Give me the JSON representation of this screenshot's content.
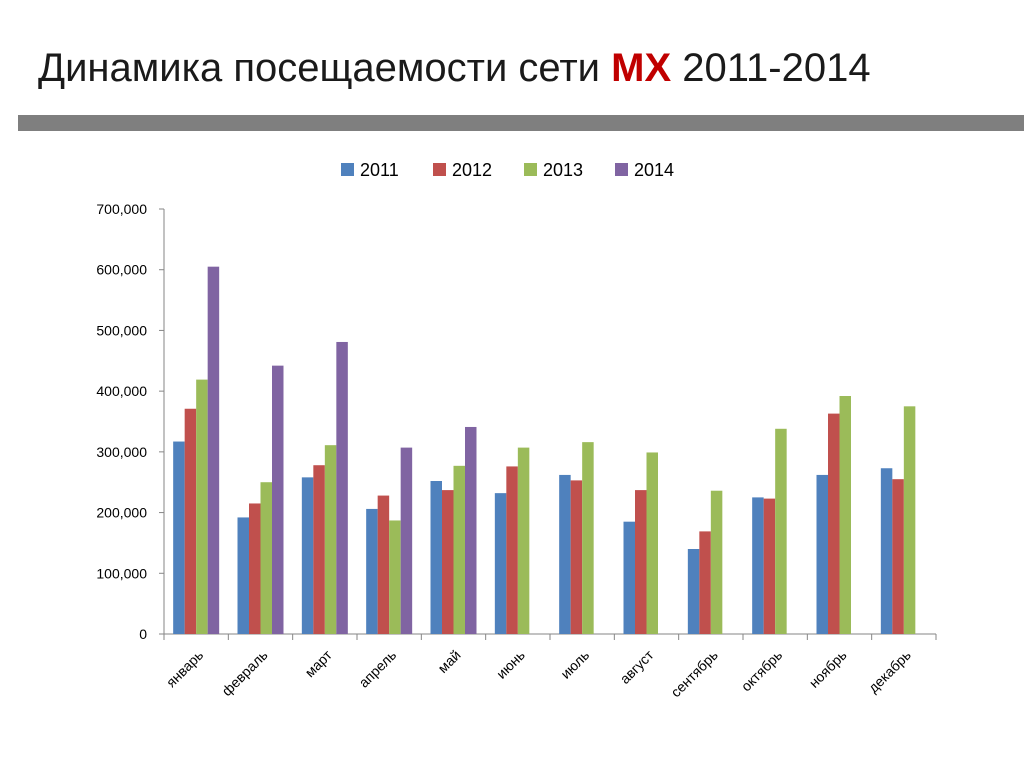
{
  "slide": {
    "title_prefix": "Динамика посещаемости сети ",
    "title_accent": "МХ",
    "title_suffix": " 2011-2014",
    "accent_color": "#c00000"
  },
  "chart_data": {
    "type": "bar",
    "title": "",
    "xlabel": "",
    "ylabel": "",
    "ylim": [
      0,
      700000
    ],
    "yticks": [
      0,
      100000,
      200000,
      300000,
      400000,
      500000,
      600000,
      700000
    ],
    "ytick_labels": [
      "0",
      "100,000",
      "200,000",
      "300,000",
      "400,000",
      "500,000",
      "600,000",
      "700,000"
    ],
    "grid": false,
    "legend_position": "top",
    "categories": [
      "январь",
      "февраль",
      "март",
      "апрель",
      "май",
      "июнь",
      "июль",
      "август",
      "сентябрь",
      "октябрь",
      "ноябрь",
      "декабрь"
    ],
    "series": [
      {
        "name": "2011",
        "color": "#4f81bd",
        "values": [
          317000,
          192000,
          258000,
          206000,
          252000,
          232000,
          262000,
          185000,
          140000,
          225000,
          262000,
          273000
        ]
      },
      {
        "name": "2012",
        "color": "#c0504d",
        "values": [
          371000,
          215000,
          278000,
          228000,
          237000,
          276000,
          253000,
          237000,
          169000,
          223000,
          363000,
          255000
        ]
      },
      {
        "name": "2013",
        "color": "#9bbb59",
        "values": [
          419000,
          250000,
          311000,
          187000,
          277000,
          307000,
          316000,
          299000,
          236000,
          338000,
          392000,
          375000
        ]
      },
      {
        "name": "2014",
        "color": "#8064a2",
        "values": [
          605000,
          442000,
          481000,
          307000,
          341000,
          null,
          null,
          null,
          null,
          null,
          null,
          null
        ]
      }
    ]
  }
}
